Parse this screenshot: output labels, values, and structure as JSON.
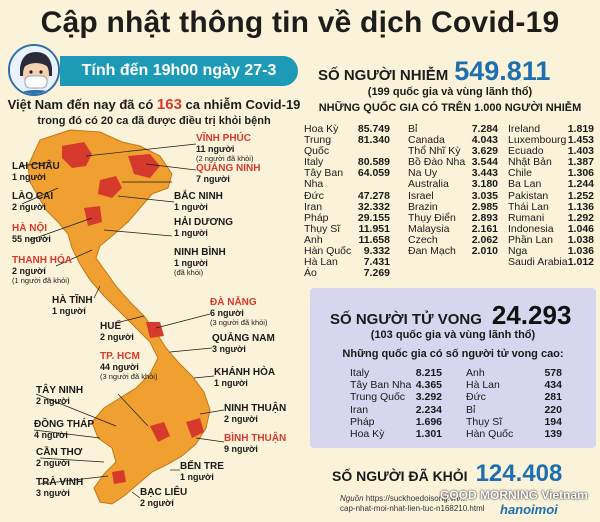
{
  "title": "Cập nhật thông tin về dịch Covid-19",
  "date_bar": "Tính đến 19h00 ngày 27-3",
  "intro": {
    "line1_pre": "Việt Nam đến nay đã có ",
    "line1_num": "163",
    "line1_post": " ca nhiễm Covid-19",
    "line2": "trong đó có 20 ca đã được điều trị khỏi bệnh"
  },
  "provinces": [
    {
      "name": "VĨNH PHÚC",
      "count": "11 người",
      "sub": "(2 người đã khỏi)",
      "red": true
    },
    {
      "name": "LAI CHÂU",
      "count": "1 người",
      "sub": "",
      "red": false
    },
    {
      "name": "QUẢNG NINH",
      "count": "7 người",
      "sub": "",
      "red": true
    },
    {
      "name": "LÀO CAI",
      "count": "2 người",
      "sub": "",
      "red": false
    },
    {
      "name": "BẮC NINH",
      "count": "1 người",
      "sub": "",
      "red": false
    },
    {
      "name": "HẢI DƯƠNG",
      "count": "1 người",
      "sub": "",
      "red": false
    },
    {
      "name": "HÀ NỘI",
      "count": "55 người",
      "sub": "",
      "red": true
    },
    {
      "name": "NINH BÌNH",
      "count": "1 người",
      "sub": "(đã khỏi)",
      "red": false
    },
    {
      "name": "THANH HÓA",
      "count": "2 người",
      "sub": "(1 người đã khỏi)",
      "red": true
    },
    {
      "name": "HÀ TĨNH",
      "count": "1 người",
      "sub": "",
      "red": false
    },
    {
      "name": "ĐÀ NẴNG",
      "count": "6 người",
      "sub": "(3 người đã khỏi)",
      "red": true
    },
    {
      "name": "HUẾ",
      "count": "2 người",
      "sub": "",
      "red": false
    },
    {
      "name": "QUẢNG NAM",
      "count": "3 người",
      "sub": "",
      "red": false
    },
    {
      "name": "TP. HCM",
      "count": "44 người",
      "sub": "(3 người đã khỏi)",
      "red": true
    },
    {
      "name": "KHÁNH HÒA",
      "count": "1 người",
      "sub": "(đã khỏi)",
      "red": false
    },
    {
      "name": "TÂY NINH",
      "count": "2 người",
      "sub": "",
      "red": false
    },
    {
      "name": "NINH THUẬN",
      "count": "2 người",
      "sub": "",
      "red": false
    },
    {
      "name": "ĐỒNG THÁP",
      "count": "4 người",
      "sub": "",
      "red": false
    },
    {
      "name": "BÌNH THUẬN",
      "count": "9 người",
      "sub": "",
      "red": true
    },
    {
      "name": "CẦN THƠ",
      "count": "2 người",
      "sub": "",
      "red": false
    },
    {
      "name": "BẾN TRE",
      "count": "1 người",
      "sub": "",
      "red": false
    },
    {
      "name": "TRÀ VINH",
      "count": "3 người",
      "sub": "",
      "red": false
    },
    {
      "name": "BẠC LIÊU",
      "count": "2 người",
      "sub": "",
      "red": false
    }
  ],
  "cases": {
    "label": "SỐ NGƯỜI NHIỄM",
    "value": "549.811",
    "sub": "(199 quốc gia và vùng lãnh thổ)",
    "sub2": "NHỮNG QUỐC GIA CÓ TRÊN 1.000 NGƯỜI NHIỄM",
    "col1": [
      [
        "Hoa Kỳ",
        "85.749"
      ],
      [
        "Trung Quốc",
        "81.340"
      ],
      [
        "Italy",
        "80.589"
      ],
      [
        "Tây Ban Nha",
        "64.059"
      ],
      [
        "Đức",
        "47.278"
      ],
      [
        "Iran",
        "32.332"
      ],
      [
        "Pháp",
        "29.155"
      ],
      [
        "Thụy Sĩ",
        "11.951"
      ],
      [
        "Anh",
        "11.658"
      ],
      [
        "Hàn Quốc",
        "9.332"
      ],
      [
        "Hà Lan",
        "7.431"
      ],
      [
        "Áo",
        "7.269"
      ]
    ],
    "col2": [
      [
        "Bỉ",
        "7.284"
      ],
      [
        "Canada",
        "4.043"
      ],
      [
        "Thổ Nhĩ Kỳ",
        "3.629"
      ],
      [
        "Bồ Đào Nha",
        "3.544"
      ],
      [
        "Na Uy",
        "3.443"
      ],
      [
        "Australia",
        "3.180"
      ],
      [
        "Israel",
        "3.035"
      ],
      [
        "Brazin",
        "2.985"
      ],
      [
        "Thụy Điển",
        "2.893"
      ],
      [
        "Malaysia",
        "2.161"
      ],
      [
        "Czech",
        "2.062"
      ],
      [
        "Đan Mạch",
        "2.010"
      ]
    ],
    "col3": [
      [
        "Ireland",
        "1.819"
      ],
      [
        "Luxembourg",
        "1.453"
      ],
      [
        "Ecuado",
        "1.403"
      ],
      [
        "Nhật Bản",
        "1.387"
      ],
      [
        "Chile",
        "1.306"
      ],
      [
        "Ba Lan",
        "1.244"
      ],
      [
        "Pakistan",
        "1.252"
      ],
      [
        "Thái Lan",
        "1.136"
      ],
      [
        "Rumani",
        "1.292"
      ],
      [
        "Indonesia",
        "1.046"
      ],
      [
        "Phần Lan",
        "1.038"
      ],
      [
        "Nga",
        "1.036"
      ],
      [
        "Saudi Arabia",
        "1.012"
      ]
    ]
  },
  "deaths": {
    "label": "SỐ NGƯỜI TỬ VONG",
    "value": "24.293",
    "sub": "(103 quốc gia và vùng lãnh thổ)",
    "sub2": "Những quốc gia có số người tử vong cao:",
    "col1": [
      [
        "Italy",
        "8.215"
      ],
      [
        "Tây Ban Nha",
        "4.365"
      ],
      [
        "Trung Quốc",
        "3.292"
      ],
      [
        "Iran",
        "2.234"
      ],
      [
        "Pháp",
        "1.696"
      ],
      [
        "Hoa Kỳ",
        "1.301"
      ]
    ],
    "col2": [
      [
        "Anh",
        "578"
      ],
      [
        "Hà Lan",
        "434"
      ],
      [
        "Đức",
        "281"
      ],
      [
        "Bỉ",
        "220"
      ],
      [
        "Thụy Sĩ",
        "194"
      ],
      [
        "Hàn Quốc",
        "139"
      ]
    ]
  },
  "recovered": {
    "label": "SỐ NGƯỜI ĐÃ KHỎI",
    "value": "124.408"
  },
  "source": {
    "label": "Nguồn",
    "text": "https://suckhoedoisong.vn/...",
    "text2": "cap-nhat-moi-nhat-lien-tuc-n168210.html"
  },
  "logo": {
    "line1": "GOOD MORNING Vietnam",
    "line2": "hanoimoi"
  },
  "colors": {
    "map_orange": "#f0a030",
    "map_red": "#d63a2c",
    "date_bar": "#1d9bb6",
    "death_box": "#d6d6ee",
    "accent_blue": "#1d6fb0"
  }
}
